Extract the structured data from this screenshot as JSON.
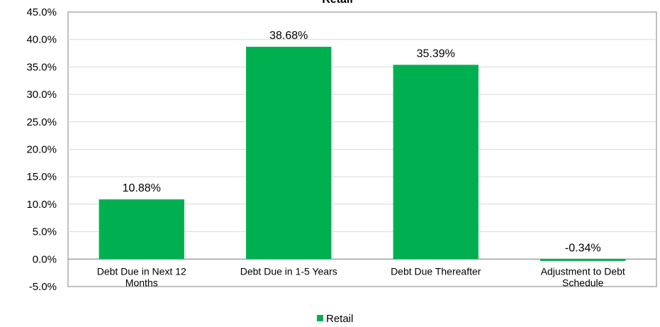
{
  "chart_data": {
    "type": "bar",
    "title": "Retail",
    "categories": [
      [
        "Debt Due in Next 12",
        "Months"
      ],
      [
        "Debt Due in 1-5 Years"
      ],
      [
        "Debt Due Thereafter"
      ],
      [
        "Adjustment to Debt",
        "Schedule"
      ]
    ],
    "series": [
      {
        "name": "Retail",
        "values": [
          10.88,
          38.68,
          35.39,
          -0.34
        ],
        "labels": [
          "10.88%",
          "38.68%",
          "35.39%",
          "-0.34%"
        ],
        "color": "#00b050"
      }
    ],
    "y_ticks": [
      "45.0%",
      "40.0%",
      "35.0%",
      "30.0%",
      "25.0%",
      "20.0%",
      "15.0%",
      "10.0%",
      "5.0%",
      "0.0%",
      "-5.0%"
    ],
    "ylim": [
      -5,
      45
    ],
    "grid": true,
    "legend": "bottom-center"
  }
}
